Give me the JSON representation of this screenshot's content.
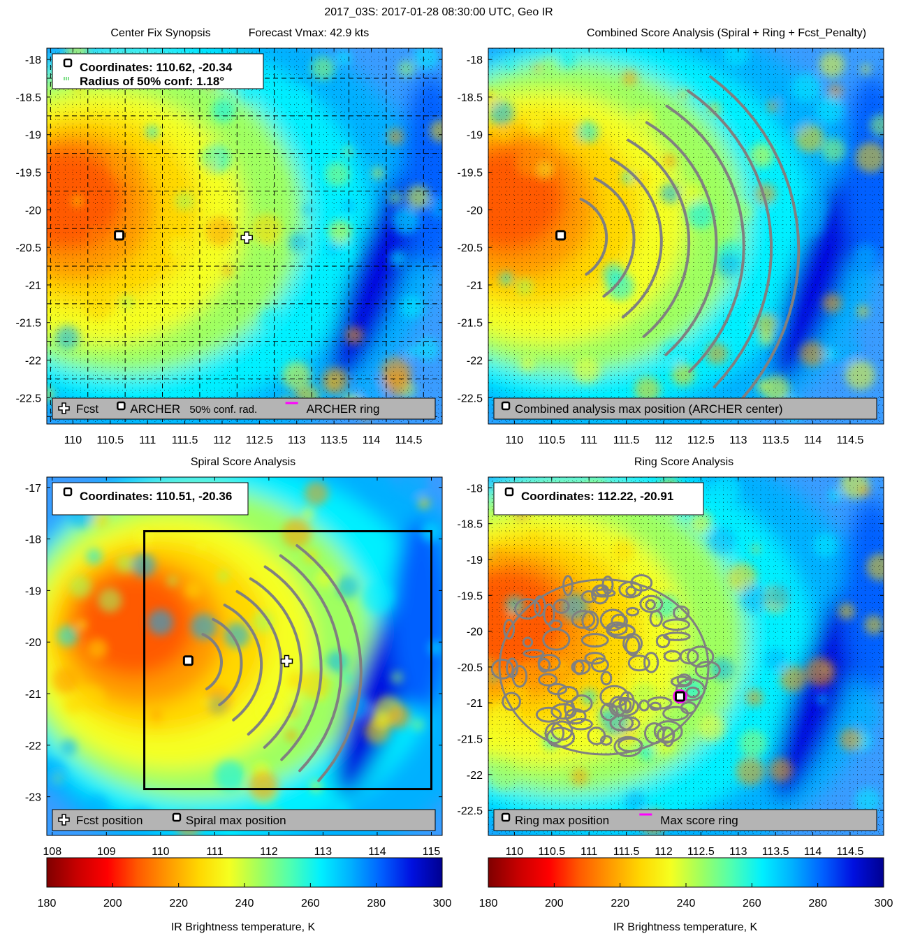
{
  "figure_title": "2017_03S: 2017-01-28 08:30:00 UTC, Geo IR",
  "colormap": [
    "#7f0000",
    "#c80000",
    "#ff0000",
    "#ff5a00",
    "#ff9a00",
    "#ffd700",
    "#f5ff20",
    "#9fff60",
    "#50ffb0",
    "#00f0ff",
    "#00b0ff",
    "#0060ff",
    "#0010e0",
    "#000090"
  ],
  "chart_data": [
    {
      "type": "heatmap",
      "title": "Center Fix Synopsis",
      "subtitle": "Forecast Vmax: 42.9 kts",
      "xlim": [
        109.65,
        114.95
      ],
      "ylim": [
        -22.85,
        -17.85
      ],
      "xticks": [
        110,
        110.5,
        111,
        111.5,
        112,
        112.5,
        113,
        113.5,
        114,
        114.5
      ],
      "yticks": [
        -18,
        -18.5,
        -19,
        -19.5,
        -20,
        -20.5,
        -21,
        -21.5,
        -22,
        -22.5
      ],
      "grid": true,
      "info_lines": [
        "Coordinates: 110.62, -20.34",
        "Radius of 50% conf: 1.18°"
      ],
      "markers": [
        {
          "kind": "archer",
          "x": 110.62,
          "y": -20.34
        },
        {
          "kind": "fcst",
          "x": 112.33,
          "y": -20.37
        }
      ],
      "legend": [
        {
          "symbol": "fcst",
          "label": "Fcst"
        },
        {
          "symbol": "archer",
          "label": "ARCHER"
        },
        {
          "symbol": "none",
          "label": "50% conf. rad."
        },
        {
          "symbol": "magenta-line",
          "label": "ARCHER ring"
        }
      ]
    },
    {
      "type": "heatmap",
      "title": "Combined Score Analysis (Spiral + Ring + Fcst_Penalty)",
      "xlim": [
        109.65,
        114.95
      ],
      "ylim": [
        -22.85,
        -17.85
      ],
      "xticks": [
        110,
        110.5,
        111,
        111.5,
        112,
        112.5,
        113,
        113.5,
        114,
        114.5
      ],
      "yticks": [
        -18,
        -18.5,
        -19,
        -19.5,
        -20,
        -20.5,
        -21,
        -21.5,
        -22,
        -22.5
      ],
      "grid": true,
      "markers": [
        {
          "kind": "archer",
          "x": 110.62,
          "y": -20.34
        }
      ],
      "legend": [
        {
          "symbol": "archer",
          "label": "Combined analysis max position (ARCHER center)"
        }
      ]
    },
    {
      "type": "heatmap",
      "title": "Spiral Score Analysis",
      "xlim": [
        107.9,
        115.2
      ],
      "ylim": [
        -23.75,
        -16.8
      ],
      "xticks": [
        108,
        109,
        110,
        111,
        112,
        113,
        114,
        115
      ],
      "yticks": [
        -17,
        -18,
        -19,
        -20,
        -21,
        -22,
        -23
      ],
      "grid": false,
      "info_lines": [
        "Coordinates: 110.51, -20.36"
      ],
      "markers": [
        {
          "kind": "archer",
          "x": 110.51,
          "y": -20.36
        },
        {
          "kind": "fcst",
          "x": 112.33,
          "y": -20.37
        }
      ],
      "search_box": {
        "x1": 109.7,
        "x2": 115.0,
        "y1": -22.85,
        "y2": -17.85
      },
      "legend": [
        {
          "symbol": "fcst",
          "label": "Fcst position"
        },
        {
          "symbol": "archer",
          "label": "Spiral max position"
        }
      ]
    },
    {
      "type": "heatmap",
      "title": "Ring Score Analysis",
      "xlim": [
        109.65,
        114.95
      ],
      "ylim": [
        -22.85,
        -17.85
      ],
      "xticks": [
        110,
        110.5,
        111,
        111.5,
        112,
        112.5,
        113,
        113.5,
        114,
        114.5
      ],
      "yticks": [
        -18,
        -18.5,
        -19,
        -19.5,
        -20,
        -20.5,
        -21,
        -21.5,
        -22,
        -22.5
      ],
      "grid": true,
      "info_lines": [
        "Coordinates: 112.22, -20.91"
      ],
      "markers": [
        {
          "kind": "ring",
          "x": 112.22,
          "y": -20.91
        }
      ],
      "legend": [
        {
          "symbol": "archer",
          "label": "Ring max position"
        },
        {
          "symbol": "magenta-line",
          "label": "Max score ring"
        }
      ]
    }
  ],
  "colorbars": [
    {
      "ticks": [
        180,
        200,
        220,
        240,
        260,
        280,
        300
      ],
      "range": [
        180,
        300
      ],
      "label": "IR Brightness temperature, K"
    },
    {
      "ticks": [
        180,
        200,
        220,
        240,
        260,
        280,
        300
      ],
      "range": [
        180,
        300
      ],
      "label": "IR Brightness temperature, K"
    }
  ]
}
